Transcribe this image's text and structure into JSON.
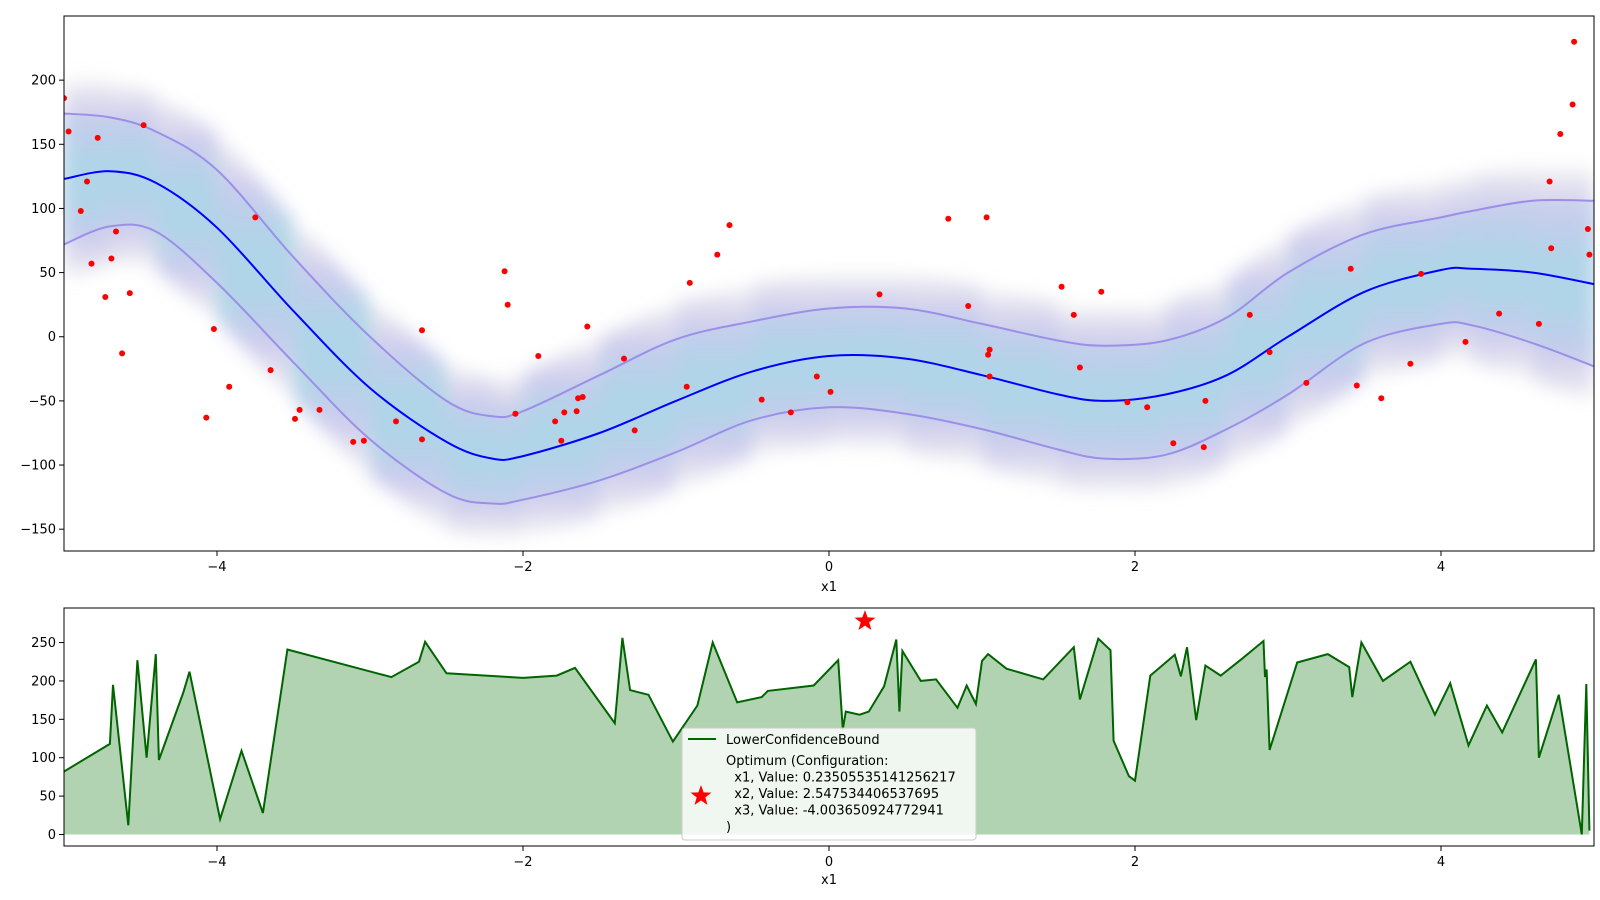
{
  "chart_data": [
    {
      "type": "line",
      "xlabel": "x1",
      "ylabel": "",
      "xlim": [
        -5,
        5
      ],
      "ylim": [
        -167,
        250
      ],
      "xticks": [
        -4,
        -2,
        0,
        2,
        4
      ],
      "yticks": [
        -150,
        -100,
        -50,
        0,
        50,
        100,
        150,
        200
      ],
      "grid": false,
      "colors": {
        "mean": "#0000ff",
        "band": "#9b8fe8",
        "points": "#ff0000",
        "shade_core": "#add8e6",
        "shade_edge": "#c8c8c8"
      },
      "mean": {
        "x": [
          -5,
          -4.7,
          -4.4,
          -4.0,
          -3.5,
          -3.0,
          -2.5,
          -2.2,
          -2.0,
          -1.5,
          -1.0,
          -0.5,
          0.0,
          0.5,
          1.0,
          1.5,
          1.8,
          2.2,
          2.6,
          3.0,
          3.5,
          4.0,
          4.2,
          4.6,
          5.0
        ],
        "y": [
          123,
          129,
          120,
          85,
          20,
          -40,
          -82,
          -95,
          -93,
          -75,
          -50,
          -27,
          -15,
          -17,
          -30,
          -45,
          -50,
          -45,
          -30,
          0,
          35,
          52,
          53,
          50,
          41
        ]
      },
      "upper": {
        "x": [
          -5,
          -4.7,
          -4.4,
          -4.0,
          -3.5,
          -3.0,
          -2.5,
          -2.2,
          -2.0,
          -1.5,
          -1.0,
          -0.5,
          0.0,
          0.5,
          1.0,
          1.5,
          1.8,
          2.2,
          2.6,
          3.0,
          3.5,
          4.0,
          4.2,
          4.6,
          5.0
        ],
        "y": [
          174,
          171,
          160,
          130,
          62,
          0,
          -50,
          -62,
          -58,
          -30,
          -2,
          12,
          22,
          22,
          10,
          -3,
          -7,
          -3,
          15,
          50,
          80,
          93,
          98,
          106,
          106
        ]
      },
      "lower": {
        "x": [
          -5,
          -4.7,
          -4.4,
          -4.0,
          -3.5,
          -3.0,
          -2.5,
          -2.2,
          -2.0,
          -1.5,
          -1.0,
          -0.5,
          0.0,
          0.5,
          1.0,
          1.5,
          1.8,
          2.2,
          2.6,
          3.0,
          3.5,
          4.0,
          4.2,
          4.6,
          5.0
        ],
        "y": [
          72,
          86,
          82,
          42,
          -20,
          -80,
          -122,
          -130,
          -127,
          -112,
          -90,
          -65,
          -55,
          -60,
          -72,
          -88,
          -95,
          -92,
          -72,
          -45,
          -5,
          10,
          9,
          -5,
          -23
        ]
      },
      "points": {
        "x": [
          -5.0,
          -4.97,
          -4.89,
          -4.85,
          -4.82,
          -4.78,
          -4.73,
          -4.69,
          -4.66,
          -4.62,
          -4.57,
          -4.48,
          -4.07,
          -4.02,
          -3.92,
          -3.75,
          -3.65,
          -3.49,
          -3.46,
          -3.33,
          -3.11,
          -3.04,
          -2.83,
          -2.66,
          -2.66,
          -2.12,
          -2.1,
          -2.05,
          -1.9,
          -1.79,
          -1.75,
          -1.73,
          -1.65,
          -1.64,
          -1.61,
          -1.58,
          -1.34,
          -1.27,
          -0.93,
          -0.91,
          -0.73,
          -0.65,
          -0.44,
          -0.25,
          -0.08,
          0.01,
          0.33,
          0.78,
          0.91,
          1.03,
          1.04,
          1.05,
          1.05,
          1.52,
          1.6,
          1.64,
          1.78,
          1.95,
          2.08,
          2.25,
          2.45,
          2.46,
          2.75,
          2.88,
          3.12,
          3.41,
          3.45,
          3.61,
          3.8,
          3.87,
          4.16,
          4.38,
          4.64,
          4.71,
          4.72,
          4.78,
          4.86,
          4.87,
          4.96,
          4.97
        ],
        "y": [
          186,
          160,
          98,
          121,
          57,
          155,
          31,
          61,
          82,
          -13,
          34,
          165,
          -63,
          6,
          -39,
          93,
          -26,
          -64,
          -57,
          -57,
          -82,
          -81,
          -66,
          5,
          -80,
          51,
          25,
          -60,
          -15,
          -66,
          -81,
          -59,
          -58,
          -48,
          -47,
          8,
          -17,
          -73,
          -39,
          42,
          64,
          87,
          -49,
          -59,
          -31,
          -43,
          33,
          92,
          24,
          93,
          -14,
          -10,
          -31,
          39,
          17,
          -24,
          35,
          -51,
          -55,
          -83,
          -86,
          -50,
          17,
          -12,
          -36,
          53,
          -38,
          -48,
          -21,
          49,
          -4,
          18,
          10,
          121,
          69,
          158,
          181,
          230,
          84,
          64
        ]
      }
    },
    {
      "type": "area",
      "xlabel": "x1",
      "ylabel": "",
      "xlim": [
        -5,
        5
      ],
      "ylim": [
        -15,
        295
      ],
      "xticks": [
        -4,
        -2,
        0,
        2,
        4
      ],
      "yticks": [
        0,
        50,
        100,
        150,
        200,
        250
      ],
      "grid": false,
      "colors": {
        "line": "#006400",
        "fill": "#b2d3b2",
        "star": "#ff0000"
      },
      "series": [
        {
          "name": "LowerConfidenceBound",
          "x": [
            -5.0,
            -4.7,
            -4.68,
            -4.58,
            -4.52,
            -4.46,
            -4.4,
            -4.38,
            -4.22,
            -4.18,
            -3.98,
            -3.84,
            -3.7,
            -3.54,
            -2.86,
            -2.68,
            -2.64,
            -2.5,
            -2.0,
            -1.78,
            -1.66,
            -1.4,
            -1.35,
            -1.3,
            -1.18,
            -1.02,
            -0.86,
            -0.76,
            -0.6,
            -0.44,
            -0.4,
            -0.1,
            0.06,
            0.09,
            0.11,
            0.2,
            0.26,
            0.36,
            0.44,
            0.46,
            0.48,
            0.6,
            0.7,
            0.84,
            0.9,
            0.96,
            1.0,
            1.04,
            1.16,
            1.4,
            1.6,
            1.64,
            1.76,
            1.84,
            1.86,
            1.96,
            2.0,
            2.1,
            2.26,
            2.3,
            2.34,
            2.4,
            2.46,
            2.56,
            2.7,
            2.84,
            2.85,
            2.86,
            2.88,
            3.06,
            3.26,
            3.4,
            3.42,
            3.48,
            3.62,
            3.8,
            3.96,
            4.06,
            4.18,
            4.3,
            4.4,
            4.62,
            4.64,
            4.77,
            4.92,
            4.95,
            4.97
          ],
          "y": [
            82,
            118,
            195,
            12,
            227,
            100,
            235,
            97,
            185,
            212,
            20,
            109,
            28,
            241,
            205,
            225,
            251,
            210,
            204,
            207,
            217,
            145,
            256,
            188,
            182,
            121,
            168,
            250,
            172,
            179,
            187,
            194,
            227,
            137,
            160,
            156,
            160,
            193,
            254,
            160,
            239,
            200,
            202,
            165,
            194,
            170,
            226,
            235,
            216,
            202,
            244,
            176,
            255,
            240,
            122,
            76,
            70,
            207,
            234,
            206,
            244,
            149,
            220,
            207,
            229,
            252,
            205,
            215,
            110,
            224,
            235,
            218,
            179,
            250,
            200,
            225,
            156,
            197,
            116,
            168,
            133,
            228,
            100,
            182,
            0,
            196,
            5
          ]
        }
      ],
      "optimum": {
        "label_lines": [
          "Optimum (Configuration:",
          "  x1, Value: 0.23505535141256217",
          "  x2, Value: 2.547534406537695",
          "  x3, Value: -4.003650924772941",
          ")"
        ],
        "x": 0.235,
        "y": 278
      },
      "legend": "lower-center"
    }
  ]
}
